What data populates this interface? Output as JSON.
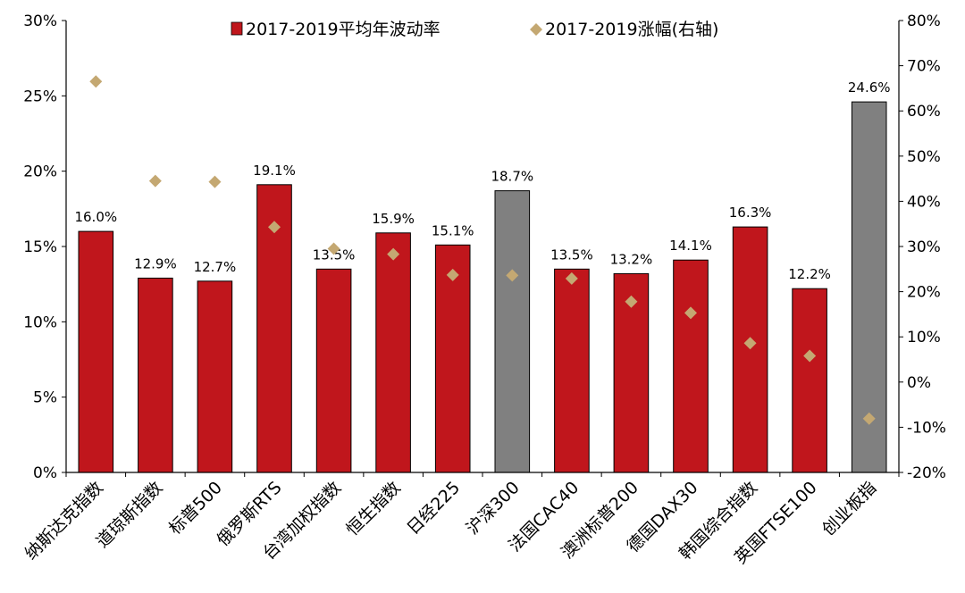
{
  "chart_data": {
    "type": "bar",
    "categories": [
      "纳斯达克指数",
      "道琼斯指数",
      "标普500",
      "俄罗斯RTS",
      "台湾加权指数",
      "恒生指数",
      "日经225",
      "沪深300",
      "法国CAC40",
      "澳洲标普200",
      "德国DAX30",
      "韩国综合指数",
      "英国FTSE100",
      "创业板指"
    ],
    "series": [
      {
        "name": "2017-2019平均年波动率",
        "axis": "left",
        "kind": "bar",
        "values": [
          16.0,
          12.9,
          12.7,
          19.1,
          13.5,
          15.9,
          15.1,
          18.7,
          13.5,
          13.2,
          14.1,
          16.3,
          12.2,
          24.6
        ],
        "value_labels": [
          "16.0%",
          "12.9%",
          "12.7%",
          "19.1%",
          "13.5%",
          "15.9%",
          "15.1%",
          "18.7%",
          "13.5%",
          "13.2%",
          "14.1%",
          "16.3%",
          "12.2%",
          "24.6%"
        ],
        "colors": [
          "#c0161c",
          "#c0161c",
          "#c0161c",
          "#c0161c",
          "#c0161c",
          "#c0161c",
          "#c0161c",
          "#808080",
          "#c0161c",
          "#c0161c",
          "#c0161c",
          "#c0161c",
          "#c0161c",
          "#808080"
        ]
      },
      {
        "name": "2017-2019涨幅(右轴)",
        "axis": "right",
        "kind": "scatter",
        "marker": "diamond",
        "color": "#c4a872",
        "values": [
          66.5,
          44.5,
          44.3,
          34.3,
          29.5,
          28.3,
          23.7,
          23.6,
          22.9,
          17.8,
          15.3,
          8.6,
          5.8,
          -8.1
        ]
      }
    ],
    "y_left": {
      "ylim": [
        0,
        30
      ],
      "ticks": [
        0,
        5,
        10,
        15,
        20,
        25,
        30
      ],
      "tick_labels": [
        "0%",
        "5%",
        "10%",
        "15%",
        "20%",
        "25%",
        "30%"
      ]
    },
    "y_right": {
      "ylim": [
        -20,
        80
      ],
      "ticks": [
        -20,
        -10,
        0,
        10,
        20,
        30,
        40,
        50,
        60,
        70,
        80
      ],
      "tick_labels": [
        "-20%",
        "-10%",
        "0%",
        "10%",
        "20%",
        "30%",
        "40%",
        "50%",
        "60%",
        "70%",
        "80%"
      ]
    },
    "legend": {
      "placement": "top-center",
      "bar_color": "#c0161c",
      "marker_color": "#c4a872"
    },
    "grid": false
  }
}
